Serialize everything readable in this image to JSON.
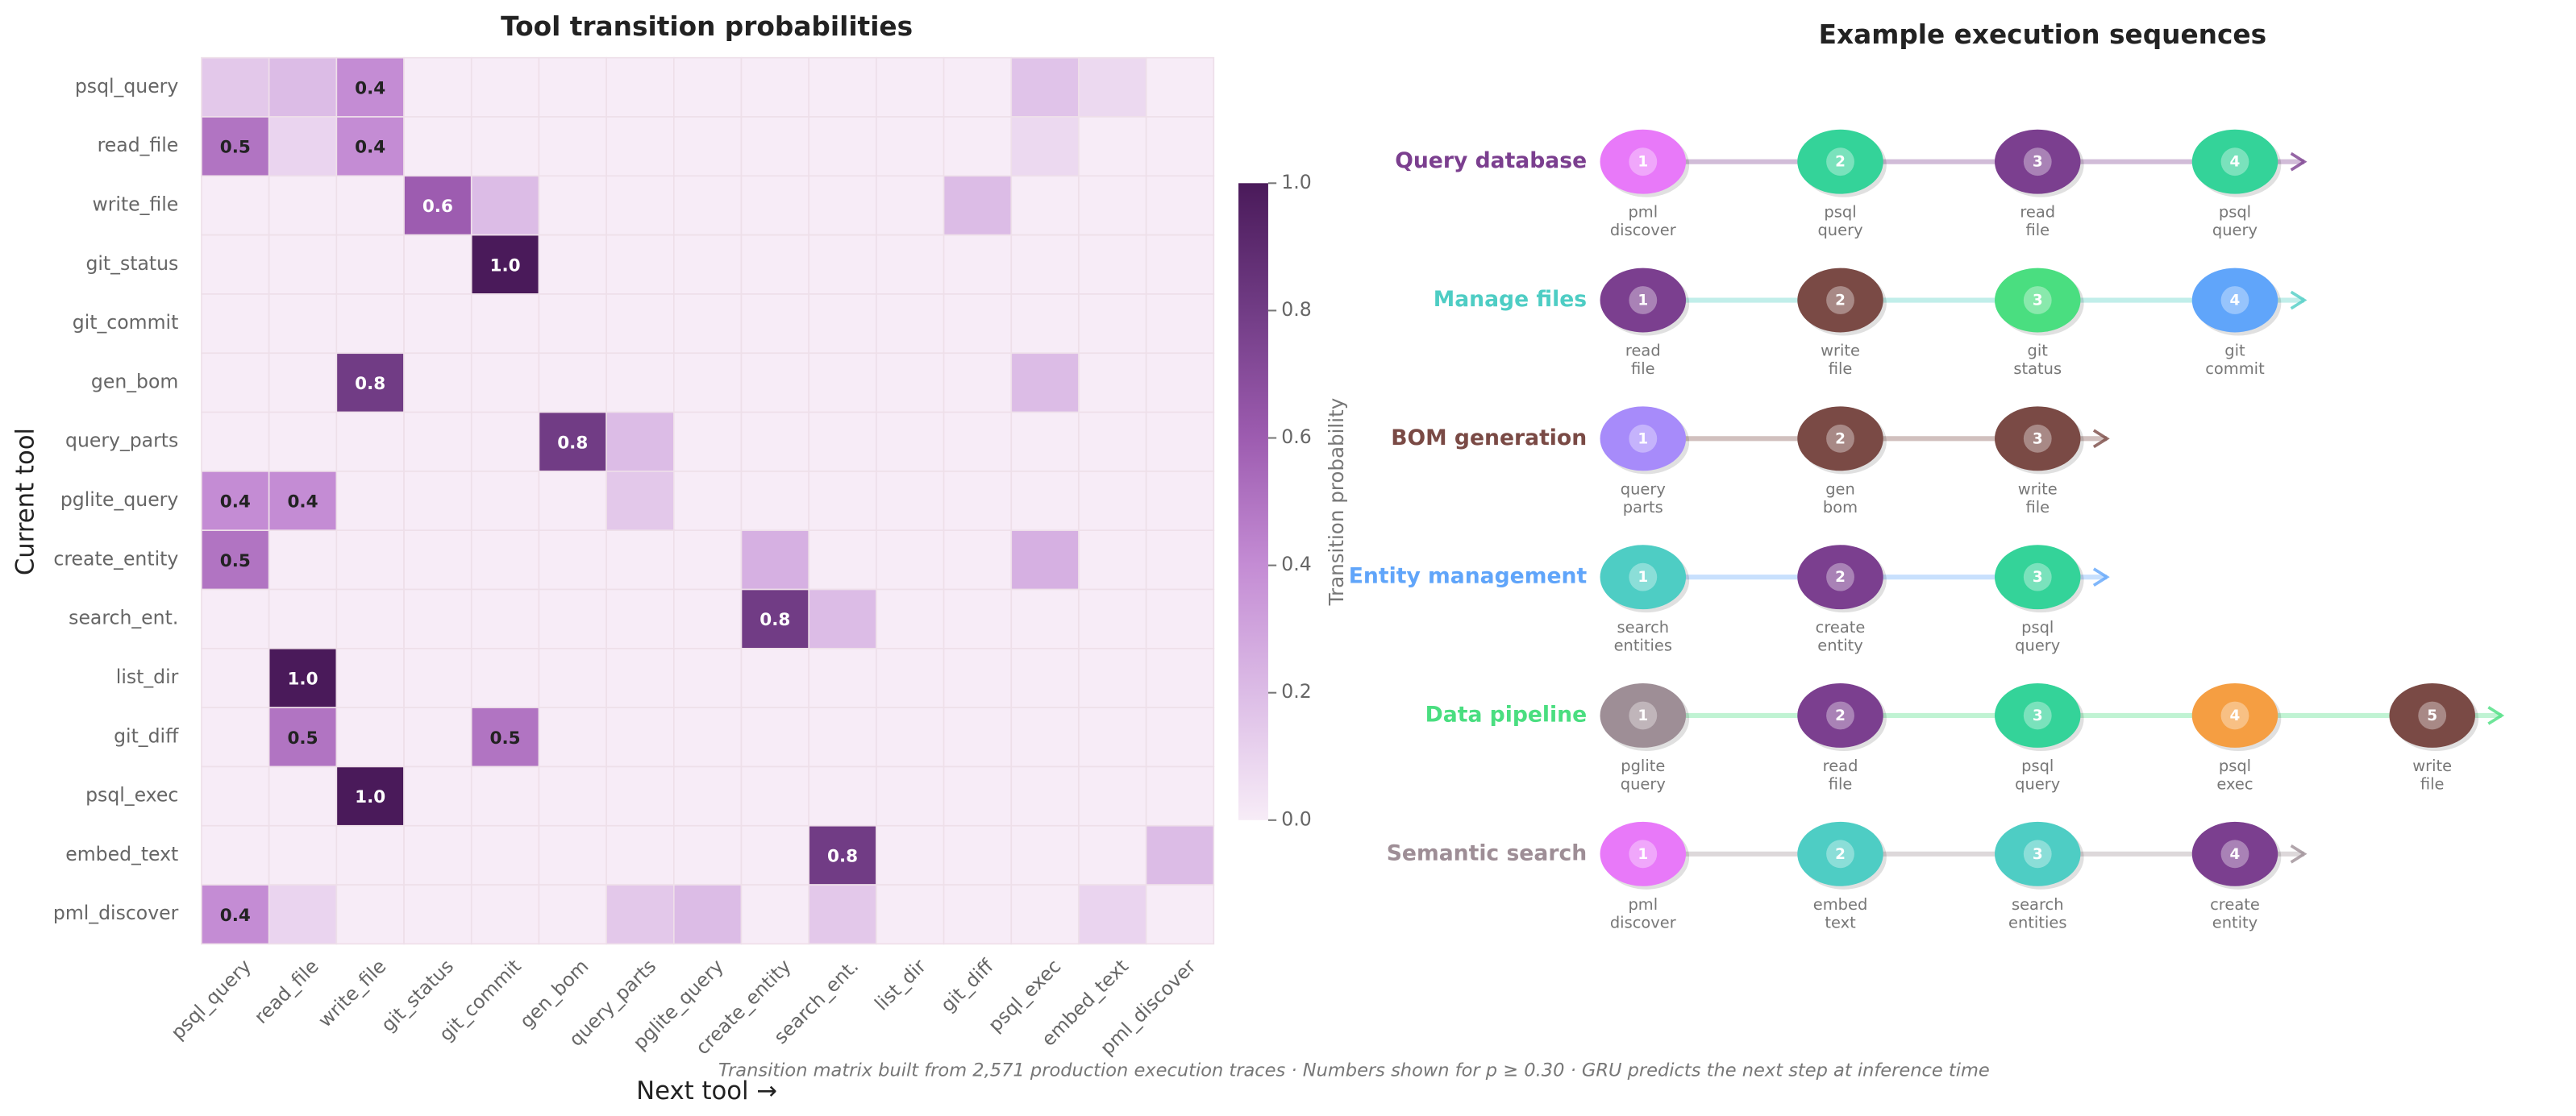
{
  "chart_data": {
    "type": "heatmap",
    "title": "Tool transition probabilities",
    "xlabel": "Next tool  →",
    "ylabel": "Current tool",
    "rows": [
      "psql_query",
      "read_file",
      "write_file",
      "git_status",
      "git_commit",
      "gen_bom",
      "query_parts",
      "pglite_query",
      "create_entity",
      "search_ent.",
      "list_dir",
      "git_diff",
      "psql_exec",
      "embed_text",
      "pml_discover"
    ],
    "columns": [
      "psql_query",
      "read_file",
      "write_file",
      "git_status",
      "git_commit",
      "gen_bom",
      "query_parts",
      "pglite_query",
      "create_entity",
      "search_ent.",
      "list_dir",
      "git_diff",
      "psql_exec",
      "embed_text",
      "pml_discover"
    ],
    "values": [
      [
        0.15,
        0.2,
        0.4,
        0,
        0,
        0,
        0,
        0,
        0,
        0,
        0,
        0,
        0.17,
        0.08,
        0
      ],
      [
        0.5,
        0.1,
        0.4,
        0,
        0,
        0,
        0,
        0,
        0,
        0,
        0,
        0,
        0.08,
        0,
        0
      ],
      [
        0,
        0,
        0,
        0.6,
        0.2,
        0,
        0,
        0,
        0,
        0,
        0,
        0.2,
        0,
        0,
        0
      ],
      [
        0,
        0,
        0,
        0,
        1.0,
        0,
        0,
        0,
        0,
        0,
        0,
        0,
        0,
        0,
        0
      ],
      [
        0,
        0,
        0,
        0,
        0,
        0,
        0,
        0,
        0,
        0,
        0,
        0,
        0,
        0,
        0
      ],
      [
        0,
        0,
        0.8,
        0,
        0,
        0,
        0,
        0,
        0,
        0,
        0,
        0,
        0.2,
        0,
        0
      ],
      [
        0,
        0,
        0,
        0,
        0,
        0.8,
        0.2,
        0,
        0,
        0,
        0,
        0,
        0,
        0,
        0
      ],
      [
        0.4,
        0.4,
        0,
        0,
        0,
        0,
        0.15,
        0,
        0,
        0,
        0,
        0,
        0,
        0,
        0
      ],
      [
        0.5,
        0,
        0,
        0,
        0,
        0,
        0,
        0,
        0.25,
        0,
        0,
        0,
        0.25,
        0,
        0
      ],
      [
        0,
        0,
        0,
        0,
        0,
        0,
        0,
        0,
        0.8,
        0.2,
        0,
        0,
        0,
        0,
        0
      ],
      [
        0,
        1.0,
        0,
        0,
        0,
        0,
        0,
        0,
        0,
        0,
        0,
        0,
        0,
        0,
        0
      ],
      [
        0,
        0.5,
        0,
        0,
        0.5,
        0,
        0,
        0,
        0,
        0,
        0,
        0,
        0,
        0,
        0
      ],
      [
        0,
        0,
        1.0,
        0,
        0,
        0,
        0,
        0,
        0,
        0,
        0,
        0,
        0,
        0,
        0
      ],
      [
        0,
        0,
        0,
        0,
        0,
        0,
        0,
        0,
        0,
        0.8,
        0,
        0,
        0,
        0,
        0.2
      ],
      [
        0.4,
        0.1,
        0,
        0,
        0,
        0,
        0.15,
        0.2,
        0,
        0.15,
        0,
        0,
        0,
        0.1,
        0
      ]
    ],
    "value_labels": [
      [
        null,
        null,
        "0.4",
        null,
        null,
        null,
        null,
        null,
        null,
        null,
        null,
        null,
        null,
        null,
        null
      ],
      [
        "0.5",
        null,
        "0.4",
        null,
        null,
        null,
        null,
        null,
        null,
        null,
        null,
        null,
        null,
        null,
        null
      ],
      [
        null,
        null,
        null,
        "0.6",
        null,
        null,
        null,
        null,
        null,
        null,
        null,
        null,
        null,
        null,
        null
      ],
      [
        null,
        null,
        null,
        null,
        "1.0",
        null,
        null,
        null,
        null,
        null,
        null,
        null,
        null,
        null,
        null
      ],
      [
        null,
        null,
        null,
        null,
        null,
        null,
        null,
        null,
        null,
        null,
        null,
        null,
        null,
        null,
        null
      ],
      [
        null,
        null,
        "0.8",
        null,
        null,
        null,
        null,
        null,
        null,
        null,
        null,
        null,
        null,
        null,
        null
      ],
      [
        null,
        null,
        null,
        null,
        null,
        "0.8",
        null,
        null,
        null,
        null,
        null,
        null,
        null,
        null,
        null
      ],
      [
        "0.4",
        "0.4",
        null,
        null,
        null,
        null,
        null,
        null,
        null,
        null,
        null,
        null,
        null,
        null,
        null
      ],
      [
        "0.5",
        null,
        null,
        null,
        null,
        null,
        null,
        null,
        null,
        null,
        null,
        null,
        null,
        null,
        null
      ],
      [
        null,
        null,
        null,
        null,
        null,
        null,
        null,
        null,
        "0.8",
        null,
        null,
        null,
        null,
        null,
        null
      ],
      [
        null,
        "1.0",
        null,
        null,
        null,
        null,
        null,
        null,
        null,
        null,
        null,
        null,
        null,
        null,
        null
      ],
      [
        null,
        "0.5",
        null,
        null,
        "0.5",
        null,
        null,
        null,
        null,
        null,
        null,
        null,
        null,
        null,
        null
      ],
      [
        null,
        null,
        "1.0",
        null,
        null,
        null,
        null,
        null,
        null,
        null,
        null,
        null,
        null,
        null,
        null
      ],
      [
        null,
        null,
        null,
        null,
        null,
        null,
        null,
        null,
        null,
        "0.8",
        null,
        null,
        null,
        null,
        null
      ],
      [
        "0.4",
        null,
        null,
        null,
        null,
        null,
        null,
        null,
        null,
        null,
        null,
        null,
        null,
        null,
        null
      ]
    ],
    "colormap": [
      "#f7ecf7",
      "#dcbce6",
      "#c48cd4",
      "#9d5cb0",
      "#713c85",
      "#4a1a5a"
    ],
    "colorbar": {
      "label": "Transition probability",
      "lim": [
        0,
        1
      ],
      "ticks": [
        {
          "value": 0,
          "label": "0.0"
        },
        {
          "value": 0.2,
          "label": "0.2"
        },
        {
          "value": 0.4,
          "label": "0.4"
        },
        {
          "value": 0.6,
          "label": "0.6"
        },
        {
          "value": 0.8,
          "label": "0.8"
        },
        {
          "value": 1,
          "label": "1.0"
        }
      ]
    }
  },
  "sequences": {
    "title": "Example execution sequences",
    "items": [
      {
        "name": "Query database",
        "color": "#7b3f8f",
        "steps": [
          {
            "n": 1,
            "label": [
              "pml",
              "discover"
            ],
            "color": "#e879f9"
          },
          {
            "n": 2,
            "label": [
              "psql",
              "query"
            ],
            "color": "#34d399"
          },
          {
            "n": 3,
            "label": [
              "read",
              "file"
            ],
            "color": "#7b3f8f"
          },
          {
            "n": 4,
            "label": [
              "psql",
              "query"
            ],
            "color": "#34d399"
          }
        ]
      },
      {
        "name": "Manage files",
        "color": "#4ecdc4",
        "steps": [
          {
            "n": 1,
            "label": [
              "read",
              "file"
            ],
            "color": "#7b3f8f"
          },
          {
            "n": 2,
            "label": [
              "write",
              "file"
            ],
            "color": "#7a4a45"
          },
          {
            "n": 3,
            "label": [
              "git",
              "status"
            ],
            "color": "#4ade80"
          },
          {
            "n": 4,
            "label": [
              "git",
              "commit"
            ],
            "color": "#60a5fa"
          }
        ]
      },
      {
        "name": "BOM generation",
        "color": "#7a4a45",
        "steps": [
          {
            "n": 1,
            "label": [
              "query",
              "parts"
            ],
            "color": "#a78bfa"
          },
          {
            "n": 2,
            "label": [
              "gen",
              "bom"
            ],
            "color": "#7a4a45"
          },
          {
            "n": 3,
            "label": [
              "write",
              "file"
            ],
            "color": "#7a4a45"
          }
        ]
      },
      {
        "name": "Entity management",
        "color": "#60a5fa",
        "steps": [
          {
            "n": 1,
            "label": [
              "search",
              "entities"
            ],
            "color": "#4ecdc4"
          },
          {
            "n": 2,
            "label": [
              "create",
              "entity"
            ],
            "color": "#7b3f8f"
          },
          {
            "n": 3,
            "label": [
              "psql",
              "query"
            ],
            "color": "#34d399"
          }
        ]
      },
      {
        "name": "Data pipeline",
        "color": "#4ade80",
        "steps": [
          {
            "n": 1,
            "label": [
              "pglite",
              "query"
            ],
            "color": "#9e8e96"
          },
          {
            "n": 2,
            "label": [
              "read",
              "file"
            ],
            "color": "#7b3f8f"
          },
          {
            "n": 3,
            "label": [
              "psql",
              "query"
            ],
            "color": "#34d399"
          },
          {
            "n": 4,
            "label": [
              "psql",
              "exec"
            ],
            "color": "#f59e42"
          },
          {
            "n": 5,
            "label": [
              "write",
              "file"
            ],
            "color": "#7a4a45"
          }
        ]
      },
      {
        "name": "Semantic search",
        "color": "#9e8e96",
        "steps": [
          {
            "n": 1,
            "label": [
              "pml",
              "discover"
            ],
            "color": "#e879f9"
          },
          {
            "n": 2,
            "label": [
              "embed",
              "text"
            ],
            "color": "#4ecdc4"
          },
          {
            "n": 3,
            "label": [
              "search",
              "entities"
            ],
            "color": "#4ecdc4"
          },
          {
            "n": 4,
            "label": [
              "create",
              "entity"
            ],
            "color": "#7b3f8f"
          }
        ]
      }
    ]
  },
  "footnote": "Transition matrix built from 2,571 production execution traces  ·  Numbers shown for p ≥ 0.30  ·  GRU predicts the next step at inference time"
}
